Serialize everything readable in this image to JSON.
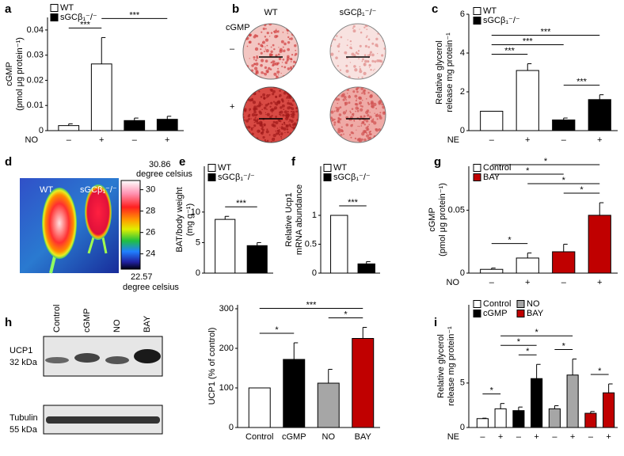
{
  "chart_data": [
    {
      "type": "bar",
      "panel": "a",
      "ylabel": [
        "cGMP",
        "(pmol μg protein⁻¹)"
      ],
      "xlabel": "NO",
      "categories": [
        "–",
        "+",
        "–",
        "+"
      ],
      "values": [
        0.002,
        0.0265,
        0.004,
        0.0045
      ],
      "errors": [
        0.0007,
        0.0105,
        0.001,
        0.0012
      ],
      "colors": [
        "#ffffff",
        "#ffffff",
        "#000000",
        "#000000"
      ],
      "ylim": [
        0,
        0.045
      ],
      "yticks": [
        0,
        0.01,
        0.02,
        0.03,
        0.04
      ],
      "legend": [
        {
          "name": "WT",
          "color": "#ffffff"
        },
        {
          "name": "sGCβ₁⁻/⁻",
          "color": "#000000"
        }
      ],
      "brackets": [
        {
          "label": "***",
          "from": 0,
          "to": 1
        },
        {
          "label": "***",
          "from": 1,
          "to": 3
        }
      ]
    },
    {
      "type": "bar",
      "panel": "c",
      "ylabel": [
        "Relative glycerol",
        "release mg protein⁻¹"
      ],
      "xlabel": "NE",
      "categories": [
        "–",
        "+",
        "–",
        "+"
      ],
      "values": [
        1,
        3.1,
        0.55,
        1.6
      ],
      "errors": [
        null,
        0.35,
        0.1,
        0.25
      ],
      "colors": [
        "#ffffff",
        "#ffffff",
        "#000000",
        "#000000"
      ],
      "ylim": [
        0,
        6
      ],
      "yticks": [
        0,
        2,
        4,
        6
      ],
      "legend": [
        {
          "name": "WT",
          "color": "#ffffff"
        },
        {
          "name": "sGCβ₁⁻/⁻",
          "color": "#000000"
        }
      ],
      "brackets": [
        {
          "label": "***",
          "from": 0,
          "to": 1
        },
        {
          "label": "***",
          "from": 2,
          "to": 3
        },
        {
          "label": "***",
          "from": 0,
          "to": 2
        },
        {
          "label": "***",
          "from": 0,
          "to": 3
        }
      ]
    },
    {
      "type": "bar",
      "panel": "e",
      "ylabel": [
        "BAT/body weight",
        "(mg g⁻¹)"
      ],
      "values": [
        8.8,
        4.5
      ],
      "errors": [
        0.5,
        0.5
      ],
      "colors": [
        "#ffffff",
        "#000000"
      ],
      "ylim": [
        0,
        17.5
      ],
      "yticks": [
        0,
        5,
        10
      ],
      "legend": [
        {
          "name": "WT",
          "color": "#ffffff"
        },
        {
          "name": "sGCβ₁⁻/⁻",
          "color": "#000000"
        }
      ],
      "brackets": [
        {
          "label": "***",
          "from": 0,
          "to": 1
        }
      ]
    },
    {
      "type": "bar",
      "panel": "f",
      "ylabel": [
        "Relative Ucp1",
        "mRNA abundance"
      ],
      "values": [
        1,
        0.16
      ],
      "errors": [
        null,
        0.04
      ],
      "colors": [
        "#ffffff",
        "#000000"
      ],
      "ylim": [
        0,
        1.85
      ],
      "yticks": [
        0,
        0.5,
        1
      ],
      "legend": [
        {
          "name": "WT",
          "color": "#ffffff"
        },
        {
          "name": "sGCβ₁⁻/⁻",
          "color": "#000000"
        }
      ],
      "brackets": [
        {
          "label": "***",
          "from": 0,
          "to": 1
        }
      ]
    },
    {
      "type": "bar",
      "panel": "g",
      "ylabel": [
        "cGMP",
        "(pmol μg protein⁻¹)"
      ],
      "xlabel": "NO",
      "categories": [
        "–",
        "+",
        "–",
        "+"
      ],
      "values": [
        0.003,
        0.012,
        0.017,
        0.046
      ],
      "errors": [
        0.001,
        0.004,
        0.006,
        0.01
      ],
      "colors": [
        "#ffffff",
        "#ffffff",
        "#c00000",
        "#c00000"
      ],
      "ylim": [
        0,
        0.085
      ],
      "yticks": [
        0,
        0.05
      ],
      "legend": [
        {
          "name": "Control",
          "color": "#ffffff"
        },
        {
          "name": "BAY",
          "color": "#c00000"
        }
      ],
      "brackets": [
        {
          "label": "*",
          "from": 0,
          "to": 1
        },
        {
          "label": "*",
          "from": 2,
          "to": 3
        },
        {
          "label": "*",
          "from": 1,
          "to": 3
        },
        {
          "label": "*",
          "from": 0,
          "to": 2
        },
        {
          "label": "*",
          "from": 0,
          "to": 3
        }
      ]
    },
    {
      "type": "bar",
      "panel": "h",
      "ylabel": [
        "UCP1 (% of control)"
      ],
      "categories": [
        "Control",
        "cGMP",
        "NO",
        "BAY"
      ],
      "values": [
        100,
        172,
        112,
        225
      ],
      "errors": [
        null,
        42,
        35,
        28
      ],
      "colors": [
        "#ffffff",
        "#000000",
        "#a6a6a6",
        "#c00000"
      ],
      "ylim": [
        0,
        310
      ],
      "yticks": [
        0,
        100,
        200,
        300
      ],
      "brackets": [
        {
          "label": "*",
          "from": 0,
          "to": 1
        },
        {
          "label": "*",
          "from": 2,
          "to": 3
        },
        {
          "label": "***",
          "from": 0,
          "to": 3
        }
      ]
    },
    {
      "type": "bar",
      "panel": "i",
      "ylabel": [
        "Relative glycerol",
        "release mg protein⁻¹"
      ],
      "xlabel": "NE",
      "categories": [
        "–",
        "+",
        "–",
        "+",
        "–",
        "+",
        "–",
        "+"
      ],
      "values": [
        1,
        2.1,
        1.9,
        5.5,
        2.1,
        5.9,
        1.6,
        3.9
      ],
      "errors": [
        0.05,
        0.6,
        0.4,
        1.6,
        0.35,
        1.8,
        0.2,
        1.0
      ],
      "colors": [
        "#ffffff",
        "#ffffff",
        "#000000",
        "#000000",
        "#a6a6a6",
        "#a6a6a6",
        "#c00000",
        "#c00000"
      ],
      "ylim": [
        0,
        13.8
      ],
      "yticks": [
        0,
        5
      ],
      "legend": [
        {
          "name": "Control",
          "color": "#ffffff"
        },
        {
          "name": "NO",
          "color": "#a6a6a6"
        },
        {
          "name": "cGMP",
          "color": "#000000"
        },
        {
          "name": "BAY",
          "color": "#c00000"
        }
      ],
      "brackets": [
        {
          "label": "*",
          "from": 0,
          "to": 1
        },
        {
          "label": "*",
          "from": 2,
          "to": 3
        },
        {
          "label": "*",
          "from": 4,
          "to": 5
        },
        {
          "label": "*",
          "from": 6,
          "to": 7
        },
        {
          "label": "*",
          "from": 1,
          "to": 3
        },
        {
          "label": "*",
          "from": 1,
          "to": 5
        }
      ]
    }
  ],
  "images": {
    "b": {
      "panel": "b",
      "columns": [
        "WT",
        "sGCβ₁⁻/⁻"
      ],
      "row_title": "cGMP",
      "rows": [
        "–",
        "+"
      ]
    },
    "d": {
      "panel": "d",
      "columns": [
        "WT",
        "sGCβ₁⁻/⁻"
      ],
      "max": 30.86,
      "min": 22.57,
      "unit": "degree celsius",
      "ticks": [
        30,
        28,
        26,
        24
      ]
    },
    "h": {
      "lanes": [
        "Control",
        "cGMP",
        "NO",
        "BAY"
      ],
      "bands": [
        {
          "name": "UCP1",
          "size": "32 kDa"
        },
        {
          "name": "Tubulin",
          "size": "55 kDa"
        }
      ]
    }
  }
}
